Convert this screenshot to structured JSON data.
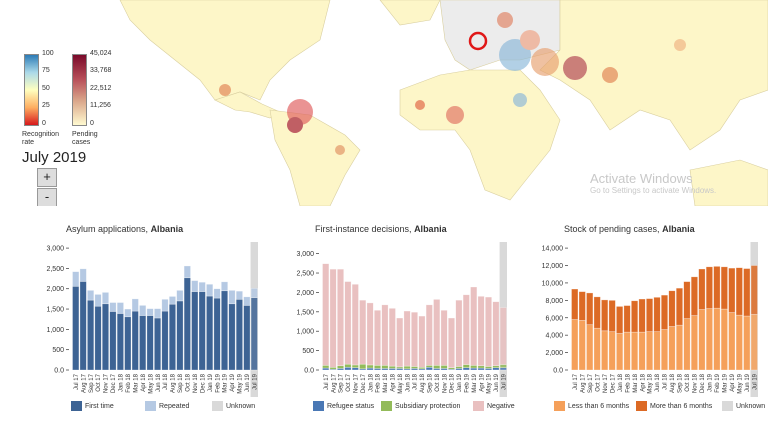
{
  "map": {
    "legend_recognition": {
      "ticks": [
        "100",
        "75",
        "50",
        "25",
        "0"
      ],
      "caption": "Recognition rate",
      "colors": [
        "#2c7bb6",
        "#abd9e9",
        "#ffffbf",
        "#fdae61",
        "#d7191c"
      ]
    },
    "legend_pending": {
      "ticks": [
        "45,024",
        "33,768",
        "22,512",
        "11,256",
        "0"
      ],
      "caption": "Pending cases",
      "colors": [
        "#7a0a2a",
        "#b8505a",
        "#d9a58a",
        "#fffad0"
      ]
    },
    "date": "July 2019",
    "zoom_in": "+",
    "zoom_out": "-"
  },
  "months": [
    "Jul 17",
    "Aug 17",
    "Sep 17",
    "Oct 17",
    "Nov 17",
    "Dec 17",
    "Jan 18",
    "Feb 18",
    "Mar 18",
    "Apr 18",
    "May 18",
    "Jun 18",
    "Jul 18",
    "Aug 18",
    "Sep 18",
    "Oct 18",
    "Nov 18",
    "Dec 18",
    "Jan 19",
    "Feb 19",
    "Mar 19",
    "Apr 19",
    "May 19",
    "Jun 19",
    "Jul 19"
  ],
  "chart_data": [
    {
      "type": "bar",
      "title": "Asylum applications,",
      "country": "Albania",
      "yticks": [
        "3,000",
        "2,500",
        "2,000",
        "1,500",
        "1,000",
        "500",
        "0.0"
      ],
      "ylim": [
        0,
        3150
      ],
      "tick_values": [
        3000,
        2500,
        2000,
        1500,
        1000,
        500,
        0
      ],
      "unknown_month": "Jul 19",
      "series": [
        {
          "name": "First time",
          "color": "#3d6394",
          "values": [
            2060,
            2180,
            1720,
            1570,
            1630,
            1440,
            1390,
            1310,
            1450,
            1340,
            1340,
            1280,
            1450,
            1620,
            1700,
            2270,
            1930,
            1930,
            1820,
            1770,
            1950,
            1630,
            1740,
            1590,
            1780
          ]
        },
        {
          "name": "Repeated",
          "color": "#b5c9e3",
          "values": [
            360,
            310,
            240,
            290,
            280,
            220,
            270,
            190,
            300,
            250,
            170,
            230,
            290,
            190,
            260,
            290,
            270,
            230,
            290,
            230,
            220,
            330,
            200,
            210,
            230
          ]
        },
        {
          "name": "Unknown",
          "color": "#d9d9d9",
          "values": []
        }
      ]
    },
    {
      "type": "bar",
      "title": "First-instance decisions,",
      "country": "Albania",
      "yticks": [
        "3,000",
        "2,500",
        "2,000",
        "1,500",
        "1,000",
        "500",
        "0.0"
      ],
      "ylim": [
        0,
        3300
      ],
      "tick_values": [
        3000,
        2500,
        2000,
        1500,
        1000,
        500,
        0
      ],
      "unknown_month": "Jul 19",
      "series": [
        {
          "name": "Refugee status",
          "color": "#4a78b5",
          "values": [
            50,
            20,
            40,
            70,
            60,
            30,
            50,
            40,
            40,
            40,
            40,
            30,
            40,
            30,
            70,
            40,
            40,
            20,
            40,
            60,
            50,
            50,
            40,
            60,
            60
          ]
        },
        {
          "name": "Subsidiary protection",
          "color": "#93bb5a",
          "values": [
            70,
            50,
            70,
            80,
            70,
            120,
            80,
            80,
            80,
            60,
            40,
            70,
            50,
            40,
            50,
            80,
            80,
            40,
            50,
            80,
            70,
            60,
            50,
            50,
            80
          ]
        },
        {
          "name": "Negative",
          "color": "#e9c0c0",
          "values": [
            2620,
            2530,
            2490,
            2130,
            2080,
            1650,
            1600,
            1420,
            1560,
            1490,
            1260,
            1420,
            1400,
            1320,
            1560,
            1700,
            1420,
            1280,
            1710,
            1800,
            2020,
            1790,
            1790,
            1650,
            1470
          ]
        }
      ]
    },
    {
      "type": "bar",
      "title": "Stock of pending cases,",
      "country": "Albania",
      "yticks": [
        "14,000",
        "12,000",
        "10,000",
        "8,000",
        "6,000",
        "4,000",
        "2,000",
        "0.0"
      ],
      "ylim": [
        0,
        14700
      ],
      "tick_values": [
        14000,
        12000,
        10000,
        8000,
        6000,
        4000,
        2000,
        0
      ],
      "unknown_month": "Jul 19",
      "series": [
        {
          "name": "Less than 6 months",
          "color": "#f5a05a",
          "values": [
            5800,
            5700,
            5200,
            4800,
            4500,
            4400,
            4200,
            4350,
            4350,
            4350,
            4400,
            4400,
            4650,
            5000,
            5150,
            5900,
            6250,
            6950,
            7050,
            7100,
            7000,
            6600,
            6300,
            6200,
            6400
          ]
        },
        {
          "name": "More than 6 months",
          "color": "#dc6a25",
          "values": [
            3500,
            3300,
            3650,
            3600,
            3550,
            3600,
            3100,
            3050,
            3600,
            3800,
            3800,
            3950,
            3950,
            4100,
            4250,
            4250,
            4450,
            4650,
            4800,
            4800,
            4850,
            5100,
            5450,
            5450,
            5600
          ]
        },
        {
          "name": "Unknown",
          "color": "#d9d9d9",
          "values": []
        }
      ]
    }
  ],
  "watermark": {
    "line1": "Activate Windows",
    "line2": "Go to Settings to activate Windows."
  }
}
